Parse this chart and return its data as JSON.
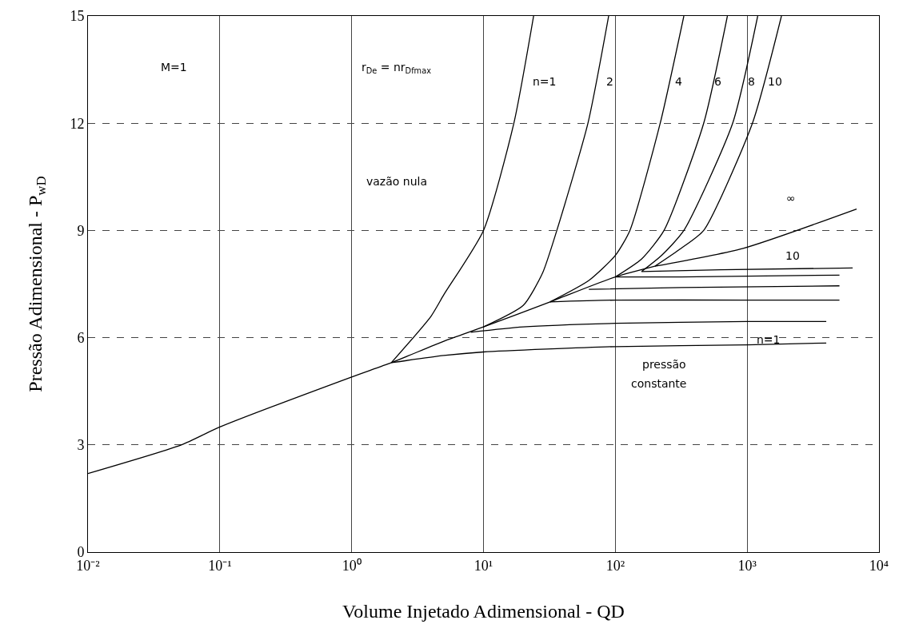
{
  "chart_data": {
    "type": "line",
    "xlabel": "Volume Injetado Adimensional - QD",
    "ylabel": "Pressão Adimensional - P$_{wD}$",
    "log": "x",
    "grid": true,
    "xlim": [
      0.01,
      10000
    ],
    "ylim": [
      0,
      15
    ],
    "xticks": [
      {
        "value": 0.01,
        "label": "10⁻²"
      },
      {
        "value": 0.1,
        "label": "10⁻¹"
      },
      {
        "value": 1,
        "label": "10⁰"
      },
      {
        "value": 10,
        "label": "10¹"
      },
      {
        "value": 100,
        "label": "10²"
      },
      {
        "value": 1000,
        "label": "10³"
      },
      {
        "value": 10000,
        "label": "10⁴"
      }
    ],
    "yticks": [
      0,
      3,
      6,
      9,
      12,
      15
    ],
    "series": [
      {
        "color": "#000000",
        "x": [
          0.01,
          0.051,
          0.1,
          1,
          2,
          5,
          10,
          32,
          100,
          200
        ],
        "values": [
          2.2,
          3,
          3.5,
          4.9,
          5.3,
          5.9,
          6.3,
          7.0,
          7.7,
          8.0
        ]
      },
      {
        "color": "#000000",
        "x": [
          2,
          4,
          5,
          10,
          17,
          24
        ],
        "values": [
          5.3,
          6.6,
          7.2,
          9,
          12,
          15
        ]
      },
      {
        "color": "#000000",
        "x": [
          10,
          20,
          28,
          36,
          62,
          89
        ],
        "values": [
          6.3,
          6.9,
          7.8,
          9,
          12,
          15
        ]
      },
      {
        "color": "#000000",
        "x": [
          32,
          63,
          100,
          129,
          219,
          331
        ],
        "values": [
          7.0,
          7.6,
          8.3,
          9,
          12,
          15
        ]
      },
      {
        "color": "#000000",
        "x": [
          100,
          158,
          234,
          468,
          708
        ],
        "values": [
          7.7,
          8.2,
          9,
          12,
          15
        ]
      },
      {
        "color": "#000000",
        "x": [
          158,
          224,
          331,
          776,
          1202
        ],
        "values": [
          7.85,
          8.3,
          9,
          12,
          15
        ]
      },
      {
        "color": "#000000",
        "x": [
          200,
          316,
          468,
          1096,
          1820
        ],
        "values": [
          8.0,
          8.5,
          9,
          12,
          15
        ]
      },
      {
        "color": "#000000",
        "x": [
          2,
          5,
          10,
          100,
          1000,
          3981
        ],
        "values": [
          5.3,
          5.5,
          5.6,
          5.75,
          5.8,
          5.85
        ]
      },
      {
        "color": "#000000",
        "x": [
          8,
          20,
          100,
          1000,
          3981
        ],
        "values": [
          6.15,
          6.3,
          6.4,
          6.45,
          6.45
        ]
      },
      {
        "color": "#000000",
        "x": [
          32,
          100,
          1000,
          5012
        ],
        "values": [
          7.0,
          7.05,
          7.05,
          7.05
        ]
      },
      {
        "color": "#000000",
        "x": [
          63,
          316,
          5012
        ],
        "values": [
          7.35,
          7.4,
          7.45
        ]
      },
      {
        "color": "#000000",
        "x": [
          100,
          316,
          5012
        ],
        "values": [
          7.7,
          7.7,
          7.75
        ]
      },
      {
        "color": "#000000",
        "x": [
          158,
          631,
          6310
        ],
        "values": [
          7.85,
          7.9,
          7.95
        ]
      },
      {
        "color": "#000000",
        "x": [
          200,
          933,
          6761
        ],
        "values": [
          8.0,
          8.5,
          9.6
        ]
      }
    ],
    "annotations": [
      "M=1",
      "r$_{De}$ = nr$_{Dfmax}$",
      "vazão nula",
      "n=1",
      "2",
      "4",
      "6",
      "8",
      "10",
      "∞",
      "10",
      "n=1",
      "pressão",
      "constante"
    ]
  }
}
